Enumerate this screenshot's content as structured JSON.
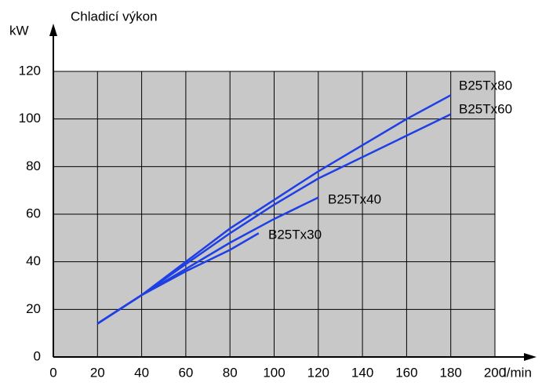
{
  "chart_data": {
    "type": "line",
    "title": "Chladicí výkon",
    "y_label": "kW",
    "x_label": "l/min",
    "xlim": [
      0,
      200
    ],
    "xticks": [
      0,
      20,
      40,
      60,
      80,
      100,
      120,
      140,
      160,
      180,
      200
    ],
    "ylim": [
      0,
      120
    ],
    "yticks": [
      0,
      20,
      40,
      60,
      80,
      100,
      120
    ],
    "grid": true,
    "series": [
      {
        "name": "B25Tx80",
        "color": "#1f3fe6",
        "x": [
          20,
          40,
          60,
          80,
          100,
          120,
          140,
          160,
          180
        ],
        "values": [
          14,
          26,
          40,
          54,
          66,
          78,
          89,
          100,
          110
        ]
      },
      {
        "name": "B25Tx60",
        "color": "#1f3fe6",
        "x": [
          20,
          40,
          60,
          80,
          100,
          120,
          140,
          160,
          180
        ],
        "values": [
          14,
          26,
          39,
          52,
          64,
          75,
          84,
          93,
          102
        ]
      },
      {
        "name": "B25Tx40",
        "color": "#1f3fe6",
        "x": [
          20,
          40,
          60,
          80,
          100,
          120
        ],
        "values": [
          14,
          26,
          37,
          48,
          58,
          67
        ]
      },
      {
        "name": "B25Tx30",
        "color": "#1f3fe6",
        "x": [
          20,
          40,
          60,
          80,
          93
        ],
        "values": [
          14,
          26,
          36,
          45,
          52
        ]
      }
    ]
  }
}
